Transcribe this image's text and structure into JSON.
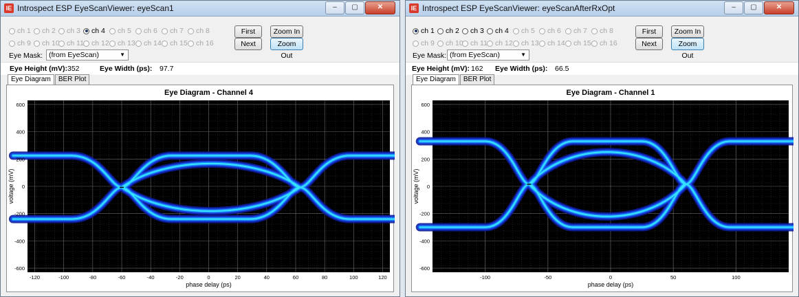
{
  "windows": [
    {
      "title": "Introspect ESP EyeScanViewer: eyeScan1",
      "app_icon_glyph": "IE",
      "titlebar_buttons": [
        "–",
        "▢",
        "✕"
      ],
      "channels": {
        "row1": [
          {
            "label": "ch 1",
            "enabled": false,
            "selected": false
          },
          {
            "label": "ch 2",
            "enabled": false,
            "selected": false
          },
          {
            "label": "ch 3",
            "enabled": false,
            "selected": false
          },
          {
            "label": "ch 4",
            "enabled": true,
            "selected": true
          },
          {
            "label": "ch 5",
            "enabled": false,
            "selected": false
          },
          {
            "label": "ch 6",
            "enabled": false,
            "selected": false
          },
          {
            "label": "ch 7",
            "enabled": false,
            "selected": false
          },
          {
            "label": "ch 8",
            "enabled": false,
            "selected": false
          }
        ],
        "row2": [
          {
            "label": "ch 9",
            "enabled": false,
            "selected": false
          },
          {
            "label": "ch 10",
            "enabled": false,
            "selected": false
          },
          {
            "label": "ch 11",
            "enabled": false,
            "selected": false
          },
          {
            "label": "ch 12",
            "enabled": false,
            "selected": false
          },
          {
            "label": "ch 13",
            "enabled": false,
            "selected": false
          },
          {
            "label": "ch 14",
            "enabled": false,
            "selected": false
          },
          {
            "label": "ch 15",
            "enabled": false,
            "selected": false
          },
          {
            "label": "ch 16",
            "enabled": false,
            "selected": false
          }
        ]
      },
      "buttons": {
        "first": "First",
        "next": "Next",
        "zoom_in": "Zoom In",
        "zoom_out": "Zoom Out"
      },
      "eye_mask": {
        "label": "Eye Mask:",
        "value": "(from EyeScan)"
      },
      "metrics": {
        "height_label": "Eye Height (mV):",
        "height_value": "352",
        "width_label": "Eye Width (ps):",
        "width_value": "97.7"
      },
      "tabs": [
        "Eye Diagram",
        "BER Plot"
      ],
      "chart_data": {
        "type": "heatmap",
        "title": "Eye Diagram - Channel 4",
        "xlabel": "phase delay (ps)",
        "ylabel": "voltage (mV)",
        "xlim": [
          -125,
          125
        ],
        "ylim": [
          -630,
          630
        ],
        "x_ticks": [
          -120,
          -100,
          -80,
          -60,
          -40,
          -20,
          0,
          20,
          40,
          60,
          80,
          100,
          120
        ],
        "y_ticks": [
          600,
          400,
          200,
          0,
          -200,
          -400,
          -600
        ],
        "grid": true,
        "crossings_x": [
          -60,
          63
        ],
        "rail_high_mV": 225,
        "rail_low_mV": -240,
        "eye_height_mV": 352,
        "eye_width_ps": 97.7
      }
    },
    {
      "title": "Introspect ESP EyeScanViewer: eyeScanAfterRxOpt",
      "app_icon_glyph": "IE",
      "titlebar_buttons": [
        "–",
        "▢",
        "✕"
      ],
      "channels": {
        "row1": [
          {
            "label": "ch 1",
            "enabled": true,
            "selected": true
          },
          {
            "label": "ch 2",
            "enabled": true,
            "selected": false
          },
          {
            "label": "ch 3",
            "enabled": true,
            "selected": false
          },
          {
            "label": "ch 4",
            "enabled": true,
            "selected": false
          },
          {
            "label": "ch 5",
            "enabled": false,
            "selected": false
          },
          {
            "label": "ch 6",
            "enabled": false,
            "selected": false
          },
          {
            "label": "ch 7",
            "enabled": false,
            "selected": false
          },
          {
            "label": "ch 8",
            "enabled": false,
            "selected": false
          }
        ],
        "row2": [
          {
            "label": "ch 9",
            "enabled": false,
            "selected": false
          },
          {
            "label": "ch 10",
            "enabled": false,
            "selected": false
          },
          {
            "label": "ch 11",
            "enabled": false,
            "selected": false
          },
          {
            "label": "ch 12",
            "enabled": false,
            "selected": false
          },
          {
            "label": "ch 13",
            "enabled": false,
            "selected": false
          },
          {
            "label": "ch 14",
            "enabled": false,
            "selected": false
          },
          {
            "label": "ch 15",
            "enabled": false,
            "selected": false
          },
          {
            "label": "ch 16",
            "enabled": false,
            "selected": false
          }
        ]
      },
      "buttons": {
        "first": "First",
        "next": "Next",
        "zoom_in": "Zoom In",
        "zoom_out": "Zoom Out"
      },
      "eye_mask": {
        "label": "Eye Mask:",
        "value": "(from EyeScan)"
      },
      "metrics": {
        "height_label": "Eye Height (mV):",
        "height_value": "162",
        "width_label": "Eye Width (ps):",
        "width_value": "66.5"
      },
      "tabs": [
        "Eye Diagram",
        "BER Plot"
      ],
      "chart_data": {
        "type": "heatmap",
        "title": "Eye Diagram - Channel 1",
        "xlabel": "phase delay (ps)",
        "ylabel": "voltage (mV)",
        "xlim": [
          -142,
          142
        ],
        "ylim": [
          -630,
          630
        ],
        "x_ticks": [
          -100,
          -50,
          0,
          50,
          100
        ],
        "y_ticks": [
          600,
          400,
          200,
          0,
          -200,
          -400,
          -600
        ],
        "grid": true,
        "crossings_x": [
          -65,
          60
        ],
        "rail_high_mV": 330,
        "rail_low_mV": -300,
        "eye_height_mV": 162,
        "eye_width_ps": 66.5
      }
    }
  ]
}
